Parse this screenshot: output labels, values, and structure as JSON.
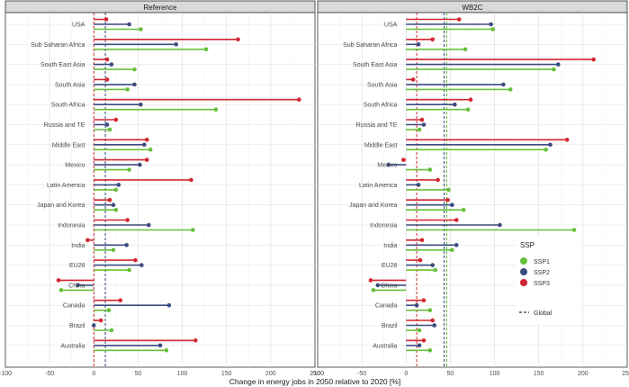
{
  "figure": {
    "x_axis_title": "Change in energy jobs in 2050 relative to 2020 [%]"
  },
  "legend": {
    "title": "SSP",
    "items": [
      {
        "label": "SSP1",
        "color": "#66c03a"
      },
      {
        "label": "SSP2",
        "color": "#3b4b80"
      },
      {
        "label": "SSP3",
        "color": "#d22630"
      }
    ],
    "global_label": "Global"
  },
  "chart_data": [
    {
      "type": "bar",
      "title": "Reference",
      "xlim": [
        -100,
        250
      ],
      "x_ticks": [
        -100,
        -50,
        0,
        50,
        100,
        150,
        200,
        250
      ],
      "grid": true,
      "global_lines": {
        "SSP1": 13,
        "SSP2": 13,
        "SSP3": 0
      },
      "categories": [
        "USA",
        "Sub Saharan Africa",
        "South East Asia",
        "South Asia",
        "South Africa",
        "Russia and TE",
        "Middle East",
        "Mexico",
        "Latin America",
        "Japan and Korea",
        "Indonesia",
        "India",
        "EU28",
        "China",
        "Canada",
        "Brazil",
        "Australia"
      ],
      "series": [
        {
          "name": "SSP3",
          "values": [
            14,
            163,
            15,
            15,
            232,
            25,
            60,
            60,
            110,
            18,
            38,
            -7,
            47,
            -40,
            30,
            8,
            115
          ]
        },
        {
          "name": "SSP2",
          "values": [
            40,
            93,
            20,
            46,
            53,
            15,
            57,
            52,
            28,
            22,
            62,
            37,
            54,
            -18,
            85,
            0,
            75
          ]
        },
        {
          "name": "SSP1",
          "values": [
            53,
            127,
            46,
            38,
            138,
            18,
            64,
            40,
            25,
            25,
            112,
            22,
            40,
            -37,
            17,
            20,
            82
          ]
        }
      ]
    },
    {
      "type": "bar",
      "title": "WB2C",
      "xlim": [
        -100,
        250
      ],
      "x_ticks": [
        -100,
        -50,
        0,
        50,
        100,
        150,
        200,
        250
      ],
      "grid": true,
      "global_lines": {
        "SSP1": 46,
        "SSP2": 43,
        "SSP3": 12
      },
      "categories": [
        "USA",
        "Sub Saharan Africa",
        "South East Asia",
        "South Asia",
        "South Africa",
        "Russia and TE",
        "Middle East",
        "Mexico",
        "Latin America",
        "Japan and Korea",
        "Indonesia",
        "India",
        "EU28",
        "China",
        "Canada",
        "Brazil",
        "Australia"
      ],
      "series": [
        {
          "name": "SSP3",
          "values": [
            60,
            30,
            212,
            8,
            73,
            18,
            182,
            -3,
            36,
            47,
            57,
            18,
            16,
            -40,
            20,
            30,
            20
          ]
        },
        {
          "name": "SSP2",
          "values": [
            96,
            14,
            172,
            110,
            55,
            20,
            163,
            -20,
            14,
            52,
            106,
            57,
            30,
            -32,
            12,
            32,
            15
          ]
        },
        {
          "name": "SSP1",
          "values": [
            98,
            67,
            167,
            118,
            70,
            15,
            158,
            27,
            48,
            65,
            190,
            52,
            33,
            -37,
            27,
            15,
            27
          ]
        }
      ]
    }
  ]
}
